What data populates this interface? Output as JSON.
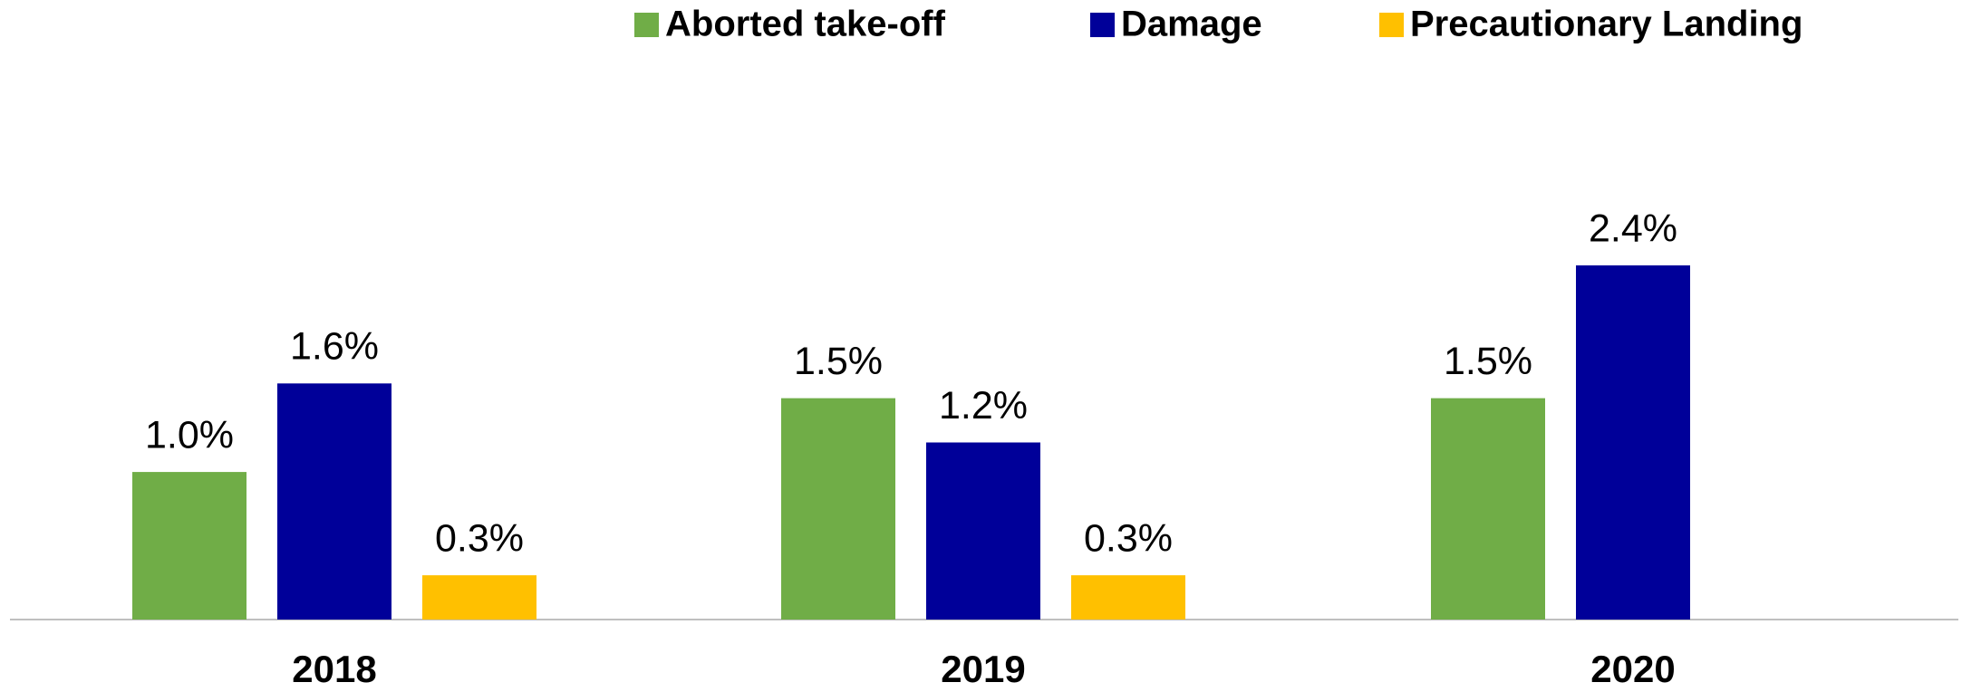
{
  "chart_data": {
    "type": "bar",
    "categories": [
      "2018",
      "2019",
      "2020"
    ],
    "series": [
      {
        "name": "Aborted take-off",
        "color": "#70ad47",
        "values": [
          1.0,
          1.5,
          1.5
        ],
        "value_labels": [
          "1.0%",
          "1.5%",
          "1.5%"
        ]
      },
      {
        "name": "Damage",
        "color": "#000099",
        "values": [
          1.6,
          1.2,
          2.4
        ],
        "value_labels": [
          "1.6%",
          "1.2%",
          "2.4%"
        ]
      },
      {
        "name": "Precautionary Landing",
        "color": "#ffc000",
        "values": [
          0.3,
          0.3,
          null
        ],
        "value_labels": [
          "0.3%",
          "0.3%",
          null
        ]
      }
    ],
    "legend": "top"
  }
}
